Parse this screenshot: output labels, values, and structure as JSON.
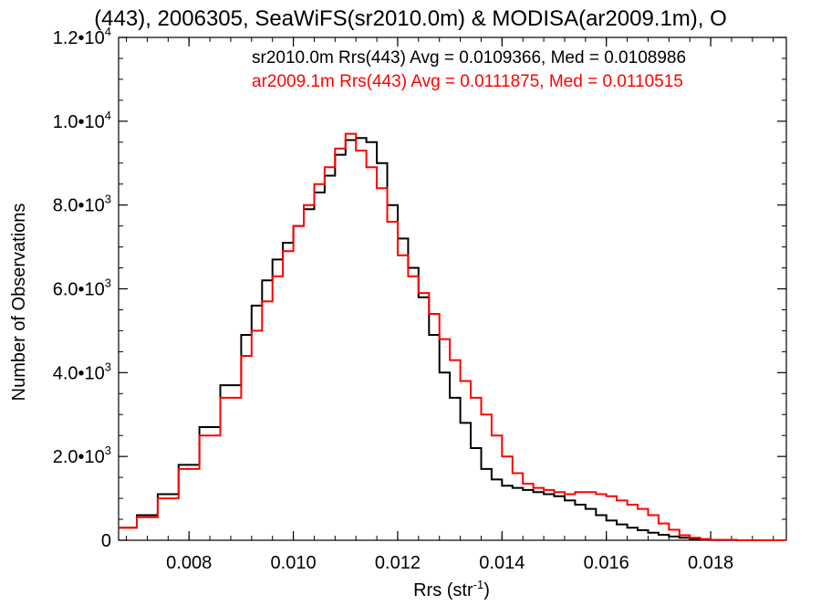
{
  "chart_data": {
    "type": "line",
    "title": "(443), 2006305, SeaWiFS(sr2010.0m) & MODISA(ar2009.1m), O",
    "xlabel_base": "Rrs (str",
    "xlabel_sup": "-1",
    "xlabel_end": ")",
    "ylabel": "Number of Observations",
    "xlim": [
      0.00665,
      0.01945
    ],
    "ylim": [
      0,
      12000
    ],
    "x_ticks": [
      {
        "value": 0.008,
        "label": "0.008"
      },
      {
        "value": 0.01,
        "label": "0.010"
      },
      {
        "value": 0.012,
        "label": "0.012"
      },
      {
        "value": 0.014,
        "label": "0.014"
      },
      {
        "value": 0.016,
        "label": "0.016"
      },
      {
        "value": 0.018,
        "label": "0.018"
      }
    ],
    "y_ticks": [
      {
        "value": 0,
        "mant": "0",
        "exp": ""
      },
      {
        "value": 2000,
        "mant": "2.0•10",
        "exp": "3"
      },
      {
        "value": 4000,
        "mant": "4.0•10",
        "exp": "3"
      },
      {
        "value": 6000,
        "mant": "6.0•10",
        "exp": "3"
      },
      {
        "value": 8000,
        "mant": "8.0•10",
        "exp": "3"
      },
      {
        "value": 10000,
        "mant": "1.0•10",
        "exp": "4"
      },
      {
        "value": 12000,
        "mant": "1.2•10",
        "exp": "4"
      }
    ],
    "series": [
      {
        "name": "sr2010.0m Rrs(443) Avg = 0.0109366, Med = 0.0108986",
        "color": "#000000",
        "x": [
          0.00665,
          0.007,
          0.0074,
          0.0078,
          0.0082,
          0.0086,
          0.009,
          0.0092,
          0.0094,
          0.0096,
          0.0098,
          0.01,
          0.0102,
          0.0104,
          0.0106,
          0.0108,
          0.011,
          0.0112,
          0.0114,
          0.0116,
          0.0118,
          0.012,
          0.0122,
          0.0124,
          0.0126,
          0.0128,
          0.013,
          0.0132,
          0.0134,
          0.0136,
          0.0138,
          0.014,
          0.0142,
          0.0144,
          0.0146,
          0.0148,
          0.015,
          0.0152,
          0.0154,
          0.0156,
          0.0158,
          0.016,
          0.0162,
          0.0164,
          0.0166,
          0.0168,
          0.017,
          0.0172,
          0.0174,
          0.0176,
          0.0178,
          0.018,
          0.0185,
          0.019,
          0.01945
        ],
        "values": [
          300,
          600,
          1100,
          1800,
          2700,
          3700,
          4900,
          5600,
          6200,
          6700,
          7100,
          7500,
          7900,
          8300,
          8700,
          9200,
          9550,
          9600,
          9500,
          9000,
          8000,
          7200,
          6500,
          5800,
          4900,
          4000,
          3400,
          2800,
          2200,
          1700,
          1450,
          1300,
          1250,
          1200,
          1150,
          1100,
          1050,
          950,
          850,
          750,
          600,
          470,
          380,
          300,
          240,
          180,
          130,
          90,
          60,
          30,
          15,
          5,
          0,
          0,
          0
        ]
      },
      {
        "name": "ar2009.1m Rrs(443) Avg = 0.0111875, Med = 0.0110515",
        "color": "#ff0000",
        "x": [
          0.00665,
          0.007,
          0.0074,
          0.0078,
          0.0082,
          0.0086,
          0.009,
          0.0092,
          0.0094,
          0.0096,
          0.0098,
          0.01,
          0.0102,
          0.0104,
          0.0106,
          0.0108,
          0.011,
          0.0112,
          0.0114,
          0.0116,
          0.0118,
          0.012,
          0.0122,
          0.0124,
          0.0126,
          0.0128,
          0.013,
          0.0132,
          0.0134,
          0.0136,
          0.0138,
          0.014,
          0.0142,
          0.0144,
          0.0146,
          0.0148,
          0.015,
          0.0152,
          0.0154,
          0.0156,
          0.0158,
          0.016,
          0.0162,
          0.0164,
          0.0166,
          0.0168,
          0.017,
          0.0172,
          0.0174,
          0.0176,
          0.0178,
          0.018,
          0.0185,
          0.019,
          0.01945
        ],
        "values": [
          300,
          550,
          1000,
          1700,
          2500,
          3400,
          4400,
          5000,
          5700,
          6300,
          6900,
          7500,
          8000,
          8500,
          8900,
          9350,
          9700,
          9300,
          8900,
          8400,
          7600,
          6800,
          6300,
          5900,
          5400,
          4800,
          4300,
          3800,
          3400,
          3000,
          2500,
          2000,
          1600,
          1350,
          1250,
          1200,
          1150,
          1100,
          1150,
          1150,
          1100,
          1050,
          950,
          850,
          750,
          600,
          400,
          250,
          120,
          60,
          30,
          10,
          0,
          0,
          0
        ]
      }
    ]
  }
}
